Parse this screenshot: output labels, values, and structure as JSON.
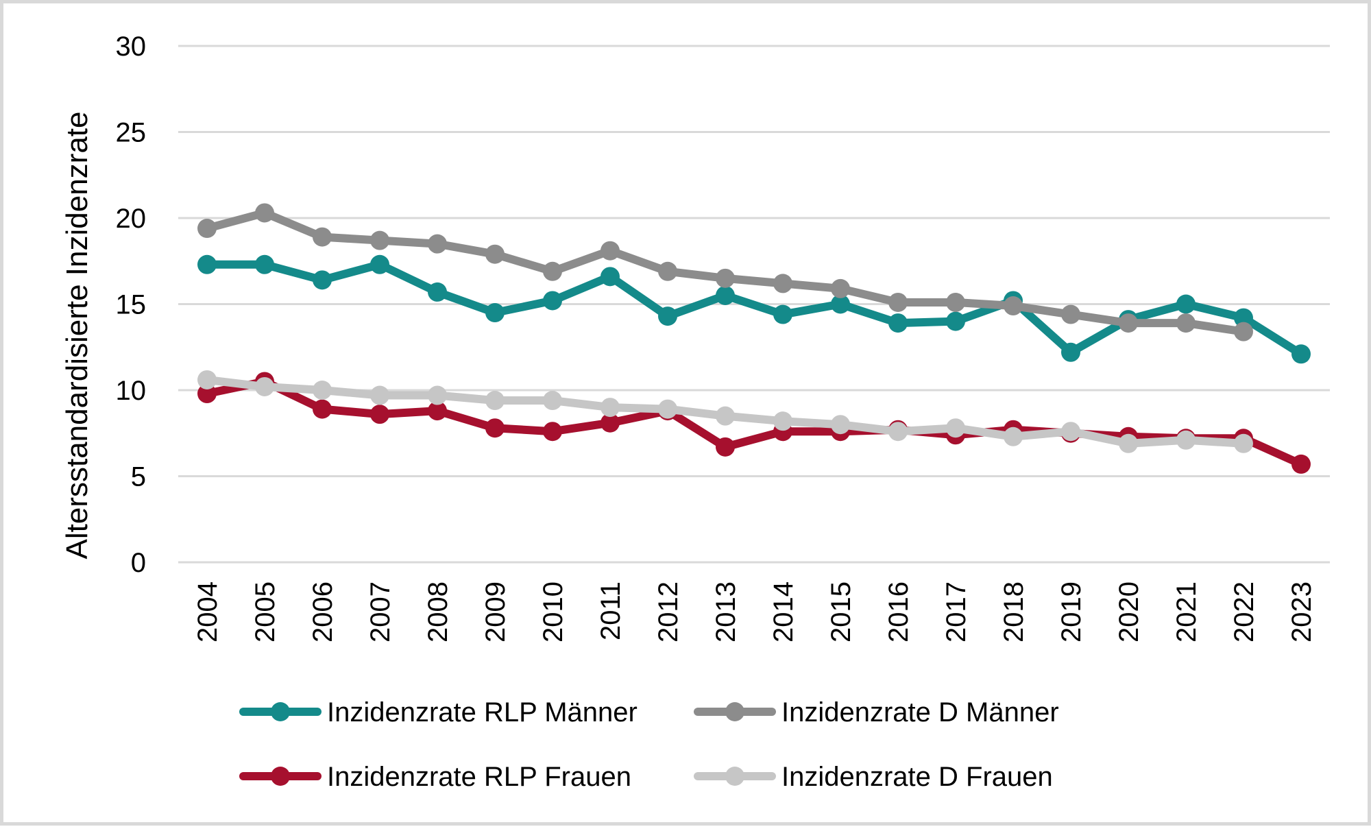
{
  "chart_data": {
    "type": "line",
    "ylabel": "Altersstandardisierte Inzidenzrate",
    "xlabel": "",
    "ylim": [
      0,
      30
    ],
    "yticks": [
      0,
      5,
      10,
      15,
      20,
      25,
      30
    ],
    "grid": "horizontal",
    "legend_position": "bottom",
    "categories": [
      "2004",
      "2005",
      "2006",
      "2007",
      "2008",
      "2009",
      "2010",
      "2011",
      "2012",
      "2013",
      "2014",
      "2015",
      "2016",
      "2017",
      "2018",
      "2019",
      "2020",
      "2021",
      "2022",
      "2023"
    ],
    "series": [
      {
        "name": "Inzidenzrate RLP Männer",
        "color": "#148a8a",
        "values": [
          17.3,
          17.3,
          16.4,
          17.3,
          15.7,
          14.5,
          15.2,
          16.6,
          14.3,
          15.5,
          14.4,
          15.0,
          13.9,
          14.0,
          15.2,
          12.2,
          14.1,
          15.0,
          14.2,
          12.1
        ]
      },
      {
        "name": "Inzidenzrate D Männer",
        "color": "#8c8c8c",
        "values": [
          19.4,
          20.3,
          18.9,
          18.7,
          18.5,
          17.9,
          16.9,
          18.1,
          16.9,
          16.5,
          16.2,
          15.9,
          15.1,
          15.1,
          14.9,
          14.4,
          13.9,
          13.9,
          13.4,
          null
        ]
      },
      {
        "name": "Inzidenzrate RLP Frauen",
        "color": "#a6102e",
        "values": [
          9.8,
          10.5,
          8.9,
          8.6,
          8.8,
          7.8,
          7.6,
          8.1,
          8.8,
          6.7,
          7.6,
          7.6,
          7.7,
          7.4,
          7.7,
          7.5,
          7.3,
          7.2,
          7.2,
          5.7
        ]
      },
      {
        "name": "Inzidenzrate D Frauen",
        "color": "#c6c6c6",
        "values": [
          10.6,
          10.2,
          10.0,
          9.7,
          9.7,
          9.4,
          9.4,
          9.0,
          8.9,
          8.5,
          8.2,
          8.0,
          7.6,
          7.8,
          7.3,
          7.6,
          6.9,
          7.1,
          6.9,
          null
        ]
      }
    ]
  }
}
